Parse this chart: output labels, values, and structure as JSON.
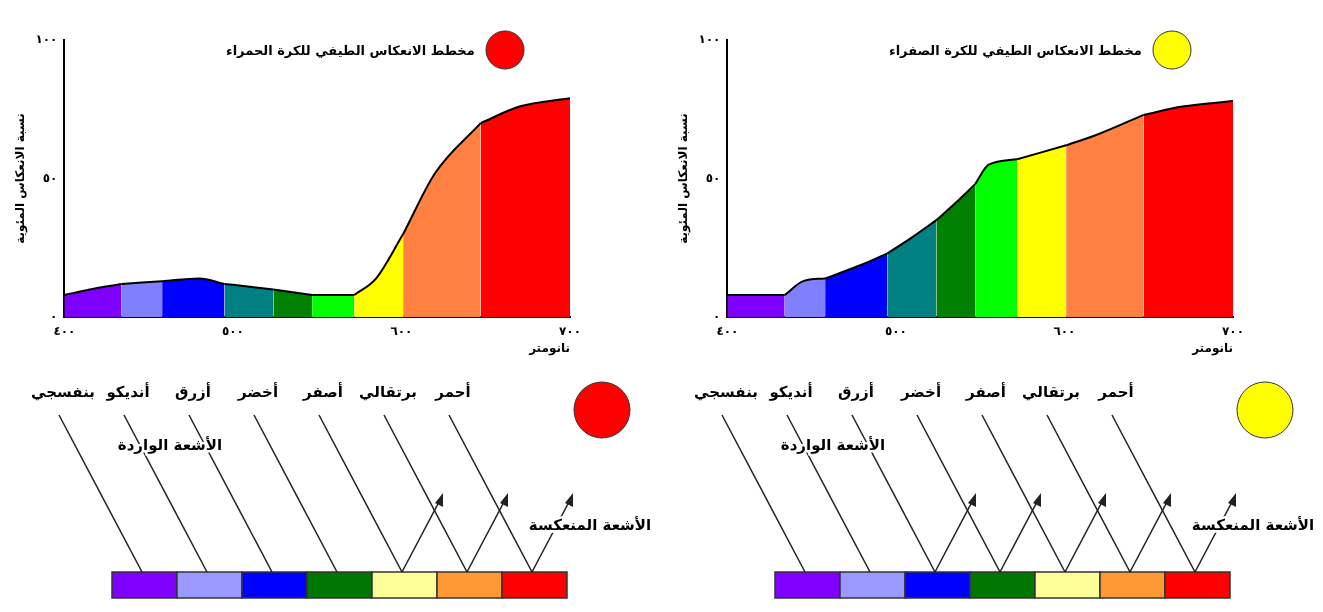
{
  "chart_data": [
    {
      "type": "area",
      "title": "مخطط الانعكاس الطيفي للكرة الحمراء",
      "xlabel": "نانومتر",
      "ylabel": "نسبة الانعكاس المئوية",
      "xlim": [
        400,
        700
      ],
      "xticks": [
        {
          "value": 400,
          "label": "٤٠٠"
        },
        {
          "value": 500,
          "label": "٥٠٠"
        },
        {
          "value": 600,
          "label": "٦٠٠"
        },
        {
          "value": 700,
          "label": "٧٠٠"
        }
      ],
      "ylim": [
        0,
        100
      ],
      "yticks": [
        {
          "value": 0,
          "label": "٠"
        },
        {
          "value": 50,
          "label": "٥٠"
        },
        {
          "value": 100,
          "label": "١٠٠"
        }
      ],
      "grid": false,
      "series": [
        {
          "color": "#8000ff",
          "x": [
            400,
            415,
            434
          ],
          "values": [
            8,
            10,
            12
          ]
        },
        {
          "color": "#8080ff",
          "x": [
            434,
            458
          ],
          "values": [
            12,
            13
          ]
        },
        {
          "color": "#0000ff",
          "x": [
            458,
            480,
            495
          ],
          "values": [
            13,
            14,
            12
          ]
        },
        {
          "color": "#008080",
          "x": [
            495,
            510,
            524
          ],
          "values": [
            12,
            11,
            10
          ]
        },
        {
          "color": "#008000",
          "x": [
            524,
            547
          ],
          "values": [
            10,
            8
          ]
        },
        {
          "color": "#00ff00",
          "x": [
            547,
            572
          ],
          "values": [
            8,
            8
          ]
        },
        {
          "color": "#ffff00",
          "x": [
            572,
            585,
            601
          ],
          "values": [
            8,
            14,
            30
          ]
        },
        {
          "color": "#ff8040",
          "x": [
            601,
            620,
            647
          ],
          "values": [
            30,
            52,
            70
          ]
        },
        {
          "color": "#ff0000",
          "x": [
            647,
            670,
            700
          ],
          "values": [
            70,
            76,
            79
          ]
        }
      ],
      "annotations": [
        "أحمر",
        "برتقالي",
        "أصفر",
        "أخضر",
        "أزرق",
        "أنديكو",
        "بنفسجي",
        "الأشعة الواردة",
        "الأشعة المنعكسة"
      ]
    },
    {
      "type": "area",
      "title": "مخطط الانعكاس الطيفي للكرة الصفراء",
      "xlabel": "نانومتر",
      "ylabel": "نسبة الانعكاس المئوية",
      "xlim": [
        400,
        700
      ],
      "xticks": [
        {
          "value": 400,
          "label": "٤٠٠"
        },
        {
          "value": 500,
          "label": "٥٠٠"
        },
        {
          "value": 600,
          "label": "٦٠٠"
        },
        {
          "value": 700,
          "label": "٧٠٠"
        }
      ],
      "ylim": [
        0,
        100
      ],
      "yticks": [
        {
          "value": 0,
          "label": "٠"
        },
        {
          "value": 50,
          "label": "٥٠"
        },
        {
          "value": 100,
          "label": "١٠٠"
        }
      ],
      "grid": false,
      "series": [
        {
          "color": "#8000ff",
          "x": [
            400,
            434
          ],
          "values": [
            8,
            8
          ]
        },
        {
          "color": "#8080ff",
          "x": [
            434,
            445,
            458
          ],
          "values": [
            8,
            13,
            14
          ]
        },
        {
          "color": "#0000ff",
          "x": [
            458,
            480,
            495
          ],
          "values": [
            14,
            19,
            23
          ]
        },
        {
          "color": "#008080",
          "x": [
            495,
            510,
            524
          ],
          "values": [
            23,
            29,
            35
          ]
        },
        {
          "color": "#008000",
          "x": [
            524,
            535,
            547
          ],
          "values": [
            35,
            41,
            48
          ]
        },
        {
          "color": "#00ff00",
          "x": [
            547,
            555,
            572
          ],
          "values": [
            48,
            55,
            57
          ]
        },
        {
          "color": "#ffff00",
          "x": [
            572,
            601
          ],
          "values": [
            57,
            62
          ]
        },
        {
          "color": "#ff8040",
          "x": [
            601,
            620,
            647
          ],
          "values": [
            62,
            66,
            73
          ]
        },
        {
          "color": "#ff0000",
          "x": [
            647,
            670,
            700
          ],
          "values": [
            73,
            76,
            78
          ]
        }
      ],
      "annotations": [
        "أحمر",
        "برتقالي",
        "أصفر",
        "أخضر",
        "أزرق",
        "أنديكو",
        "بنفسجي",
        "الأشعة الواردة",
        "الأشعة المنعكسة"
      ]
    }
  ]
}
